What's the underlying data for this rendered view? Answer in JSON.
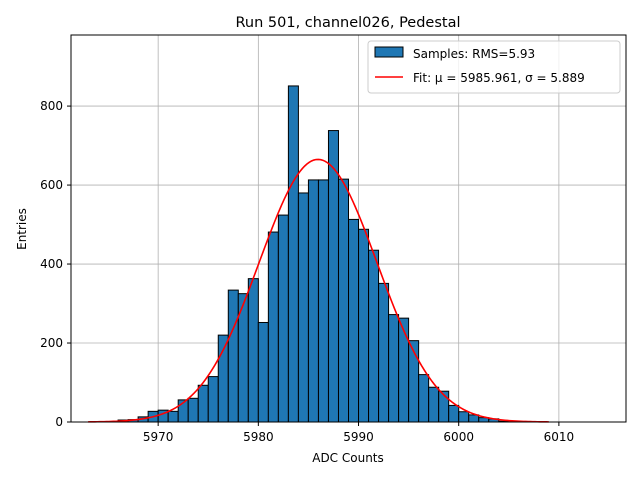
{
  "chart_data": {
    "type": "bar",
    "title": "Run 501, channel026, Pedestal",
    "xlabel": "ADC Counts",
    "ylabel": "Entries",
    "xlim": [
      5961.3,
      6016.7
    ],
    "ylim": [
      0,
      980
    ],
    "x_ticks": [
      5970,
      5980,
      5990,
      6000,
      6010
    ],
    "y_ticks": [
      0,
      200,
      400,
      600,
      800
    ],
    "grid": true,
    "legend_position": "top-right",
    "bin_width": 1,
    "series": [
      {
        "name": "Samples: RMS=5.93",
        "kind": "histogram",
        "color": "#1f77b4",
        "edgecolor": "#000000",
        "bins_left": [
          5966,
          5967,
          5968,
          5969,
          5970,
          5971,
          5972,
          5973,
          5974,
          5975,
          5976,
          5977,
          5978,
          5979,
          5980,
          5981,
          5982,
          5983,
          5984,
          5985,
          5986,
          5987,
          5988,
          5989,
          5990,
          5991,
          5992,
          5993,
          5994,
          5995,
          5996,
          5997,
          5998,
          5999,
          6000,
          6001,
          6002,
          6003,
          6004
        ],
        "values": [
          5,
          6,
          13,
          27,
          30,
          27,
          56,
          60,
          93,
          115,
          220,
          334,
          325,
          363,
          252,
          481,
          524,
          851,
          580,
          613,
          613,
          738,
          615,
          513,
          488,
          435,
          351,
          272,
          263,
          206,
          120,
          88,
          78,
          42,
          26,
          18,
          11,
          8,
          2
        ]
      },
      {
        "name": "Fit: μ = 5985.961, σ = 5.889",
        "kind": "gaussian-fit",
        "color": "#ff0000",
        "mu": 5985.961,
        "sigma": 5.889,
        "amplitude": 665,
        "x_range": [
          5963,
          6009
        ]
      }
    ]
  },
  "colors": {
    "bar_fill": "#1f77b4",
    "bar_edge": "#000000",
    "fit_line": "#ff0000",
    "grid": "#b0b0b0"
  }
}
